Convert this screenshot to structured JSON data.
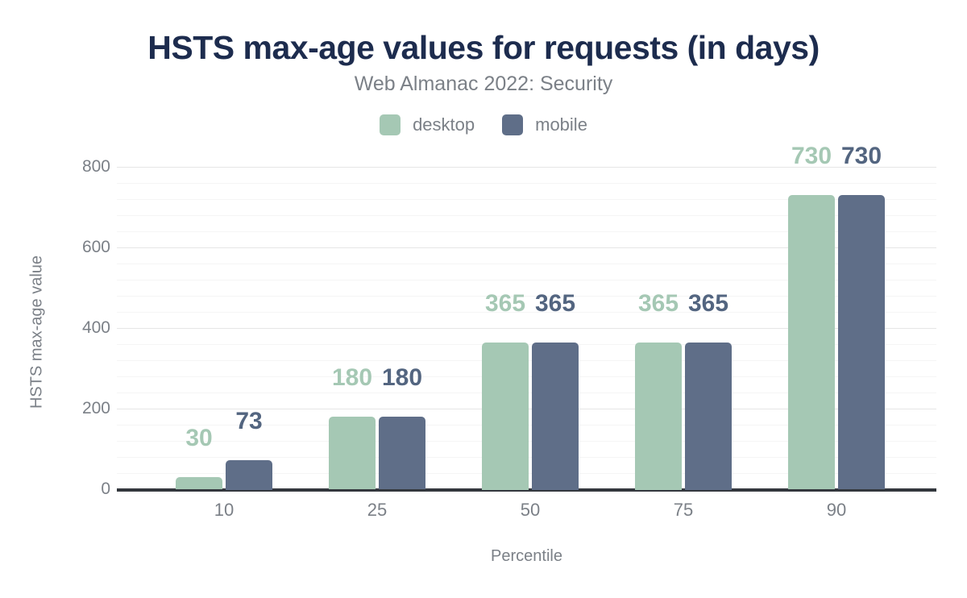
{
  "header": {
    "title": "HSTS max-age values for requests (in days)",
    "subtitle": "Web Almanac 2022: Security"
  },
  "chart_data": {
    "type": "bar",
    "title": "HSTS max-age values for requests (in days)",
    "subtitle": "Web Almanac 2022: Security",
    "categories": [
      "10",
      "25",
      "50",
      "75",
      "90"
    ],
    "series": [
      {
        "name": "desktop",
        "color": "#a5c8b4",
        "label_color": "#a5c8b4",
        "values": [
          30,
          180,
          365,
          365,
          730
        ]
      },
      {
        "name": "mobile",
        "color": "#5f6e88",
        "label_color": "#536580",
        "values": [
          73,
          180,
          365,
          365,
          730
        ]
      }
    ],
    "xlabel": "Percentile",
    "ylabel": "HSTS max-age value",
    "ylim": [
      0,
      800
    ],
    "yticks": [
      0,
      200,
      400,
      600,
      800
    ],
    "minor_gridline_step": 40,
    "grid": "on",
    "legend_position": "top",
    "bar_value_labels": true
  },
  "colors": {
    "title_text": "#1d2c4e",
    "muted_text": "#7b8087",
    "axis_line": "#33373d",
    "major_gridline": "#e6e6e6",
    "minor_gridline": "#f5f5f5",
    "background": "#ffffff"
  }
}
